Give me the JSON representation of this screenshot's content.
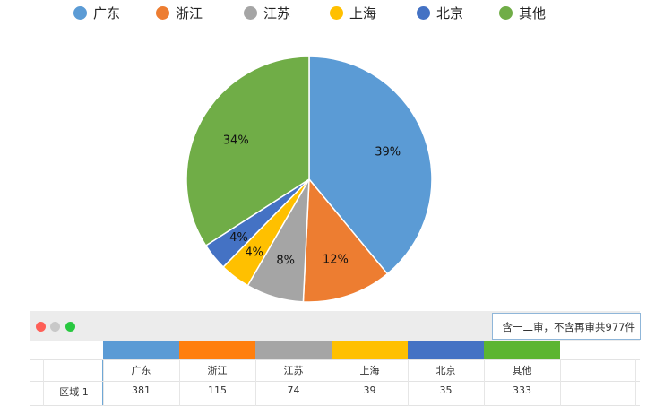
{
  "chart_data": {
    "type": "pie",
    "categories": [
      "广东",
      "浙江",
      "江苏",
      "上海",
      "北京",
      "其他"
    ],
    "values": [
      381,
      115,
      74,
      39,
      35,
      333
    ],
    "percent_labels": [
      "39%",
      "12%",
      "8%",
      "4%",
      "4%",
      "34%"
    ],
    "colors": [
      "#5b9bd5",
      "#ed7d31",
      "#a5a5a5",
      "#ffc000",
      "#4472c4",
      "#70ad47"
    ],
    "legend_position": "top"
  },
  "table_window": {
    "note": "含一二审，不含再审共977件",
    "row_label": "区域 1",
    "headers": [
      "广东",
      "浙江",
      "江苏",
      "上海",
      "北京",
      "其他"
    ],
    "values": [
      "381",
      "115",
      "74",
      "39",
      "35",
      "333"
    ],
    "header_colors": [
      "#5b9bd5",
      "#ff7f0e",
      "#a5a5a5",
      "#ffc000",
      "#4472c4",
      "#5cb531"
    ],
    "traffic_light_colors": [
      "#fe5f57",
      "#c8c8c8",
      "#28c840"
    ]
  }
}
